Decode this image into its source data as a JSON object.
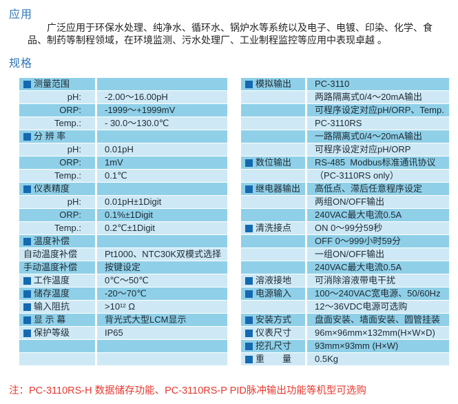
{
  "colors": {
    "accent_blue": "#2e75b6",
    "row_medium": "#8fd0e8",
    "row_light": "#cee9f5",
    "bullet_blue": "#1569b0",
    "note_red": "#e8382f"
  },
  "sections": {
    "application_title": "应用",
    "application_text": "广泛应用于环保水处理、纯净水、循环水、锅炉水等系统以及电子、电镀、印染、化学、食品、制药等制程领域，在环境监测、污水处理厂、工业制程监控等应用中表现卓越 。",
    "spec_title": "规格"
  },
  "spec_left": {
    "rows": [
      {
        "bullet": true,
        "label": "测量范围",
        "align": "left",
        "value": ""
      },
      {
        "bullet": false,
        "label": "pH:",
        "align": "right",
        "value": "-2.00～16.00pH"
      },
      {
        "bullet": false,
        "label": "ORP:",
        "align": "right",
        "value": "-1999～+1999mV"
      },
      {
        "bullet": false,
        "label": "Temp.:",
        "align": "right",
        "value": "- 30.0～130.0℃"
      },
      {
        "bullet": true,
        "label": "分 辨 率",
        "align": "left",
        "value": ""
      },
      {
        "bullet": false,
        "label": "pH:",
        "align": "right",
        "value": "0.01pH"
      },
      {
        "bullet": false,
        "label": "ORP:",
        "align": "right",
        "value": "1mV"
      },
      {
        "bullet": false,
        "label": "Temp.:",
        "align": "right",
        "value": "0.1℃"
      },
      {
        "bullet": true,
        "label": "仪表精度",
        "align": "left",
        "value": ""
      },
      {
        "bullet": false,
        "label": "pH:",
        "align": "right",
        "value": "0.01pH±1Digit"
      },
      {
        "bullet": false,
        "label": "ORP:",
        "align": "right",
        "value": "0.1%±1Digit"
      },
      {
        "bullet": false,
        "label": "Temp.:",
        "align": "right",
        "value": "0.2℃±1Digit"
      },
      {
        "bullet": true,
        "label": "温度补偿",
        "align": "left",
        "value": ""
      },
      {
        "bullet": false,
        "label": "自动温度补偿",
        "align": "left",
        "value": "Pt1000、NTC30K双模式选择"
      },
      {
        "bullet": false,
        "label": "手动温度补偿",
        "align": "left",
        "value": "按键设定"
      },
      {
        "bullet": true,
        "label": "工作温度",
        "align": "left",
        "value": "0℃～50℃"
      },
      {
        "bullet": true,
        "label": "储存温度",
        "align": "left",
        "value": "-20～70℃"
      },
      {
        "bullet": true,
        "label": "输入阻抗",
        "align": "left",
        "value": ">10¹² Ω"
      },
      {
        "bullet": true,
        "label": "显 示 幕",
        "align": "left",
        "value": "背光式大型LCM显示"
      },
      {
        "bullet": true,
        "label": "保护等级",
        "align": "left",
        "value": "IP65"
      },
      {
        "bullet": false,
        "label": "",
        "align": "left",
        "value": ""
      },
      {
        "bullet": false,
        "label": "",
        "align": "left",
        "value": ""
      }
    ]
  },
  "spec_right": {
    "rows": [
      {
        "bullet": true,
        "label": "模拟输出",
        "align": "left",
        "value": "PC-3110"
      },
      {
        "bullet": false,
        "label": "",
        "align": "left",
        "value": "两路隔离式0/4～20mA输出"
      },
      {
        "bullet": false,
        "label": "",
        "align": "left",
        "value": "可程序设定对应pH/ORP、Temp."
      },
      {
        "bullet": false,
        "label": "",
        "align": "left",
        "value": "PC-3110RS"
      },
      {
        "bullet": false,
        "label": "",
        "align": "left",
        "value": "一路隔离式0/4～20mA输出"
      },
      {
        "bullet": false,
        "label": "",
        "align": "left",
        "value": "可程序设定对应pH/ORP"
      },
      {
        "bullet": true,
        "label": "数位输出",
        "align": "left",
        "value": "RS-485  Modbus标准通讯协议"
      },
      {
        "bullet": false,
        "label": "",
        "align": "left",
        "value": "（PC-3110RS only）"
      },
      {
        "bullet": true,
        "label": "继电器输出",
        "align": "left",
        "value": "高低点、滞后任意程序设定"
      },
      {
        "bullet": false,
        "label": "",
        "align": "left",
        "value": "两组ON/OFF输出"
      },
      {
        "bullet": false,
        "label": "",
        "align": "left",
        "value": "240VAC最大电流0.5A"
      },
      {
        "bullet": true,
        "label": "清洗接点",
        "align": "left",
        "value": "ON 0～99分59秒"
      },
      {
        "bullet": false,
        "label": "",
        "align": "left",
        "value": "OFF 0～999小时59分"
      },
      {
        "bullet": false,
        "label": "",
        "align": "left",
        "value": "一组ON/OFF输出"
      },
      {
        "bullet": false,
        "label": "",
        "align": "left",
        "value": "240VAC最大电流0.5A"
      },
      {
        "bullet": true,
        "label": "溶液接地",
        "align": "left",
        "value": "可消除溶液带电干扰"
      },
      {
        "bullet": true,
        "label": "电源输入",
        "align": "left",
        "value": "100～240VAC宽电源、50/60Hz"
      },
      {
        "bullet": false,
        "label": "",
        "align": "left",
        "value": "12～36VDC电源可选购"
      },
      {
        "bullet": true,
        "label": "安装方式",
        "align": "left",
        "value": "盘面安装、墙面安装、圆管挂装"
      },
      {
        "bullet": true,
        "label": "仪表尺寸",
        "align": "left",
        "value": "96m×96mm×132mm(H×W×D)"
      },
      {
        "bullet": true,
        "label": "挖孔尺寸",
        "align": "left",
        "value": "93mm×93mm (H×W)"
      },
      {
        "bullet": true,
        "label": "重　　量",
        "align": "left",
        "value": "0.5Kg"
      }
    ]
  },
  "note": {
    "text": "注：PC-3110RS-H 数据储存功能、PC-3110RS-P PID脉冲输出功能等机型可选购"
  }
}
